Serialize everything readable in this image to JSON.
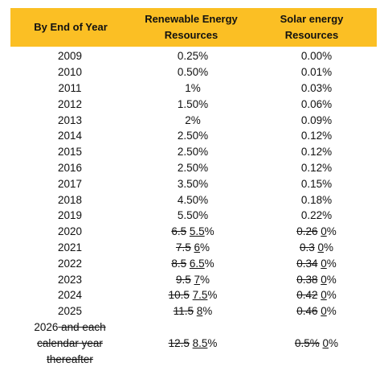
{
  "headers": {
    "col1": "By End of Year",
    "col2_line1": "Renewable Energy",
    "col2_line2": "Resources",
    "col3_line1": "Solar energy",
    "col3_line2": "Resources"
  },
  "rows": [
    {
      "year": "2009",
      "ren": {
        "plain": "0.25%"
      },
      "sol": {
        "plain": "0.00%"
      }
    },
    {
      "year": "2010",
      "ren": {
        "plain": "0.50%"
      },
      "sol": {
        "plain": "0.01%"
      }
    },
    {
      "year": "2011",
      "ren": {
        "plain": "1%"
      },
      "sol": {
        "plain": "0.03%"
      }
    },
    {
      "year": "2012",
      "ren": {
        "plain": "1.50%"
      },
      "sol": {
        "plain": "0.06%"
      }
    },
    {
      "year": "2013",
      "ren": {
        "plain": "2%"
      },
      "sol": {
        "plain": "0.09%"
      }
    },
    {
      "year": "2014",
      "ren": {
        "plain": "2.50%"
      },
      "sol": {
        "plain": "0.12%"
      }
    },
    {
      "year": "2015",
      "ren": {
        "plain": "2.50%"
      },
      "sol": {
        "plain": "0.12%"
      }
    },
    {
      "year": "2016",
      "ren": {
        "plain": "2.50%"
      },
      "sol": {
        "plain": "0.12%"
      }
    },
    {
      "year": "2017",
      "ren": {
        "plain": "3.50%"
      },
      "sol": {
        "plain": "0.15%"
      }
    },
    {
      "year": "2018",
      "ren": {
        "plain": "4.50%"
      },
      "sol": {
        "plain": "0.18%"
      }
    },
    {
      "year": "2019",
      "ren": {
        "plain": "5.50%"
      },
      "sol": {
        "plain": "0.22%"
      }
    },
    {
      "year": "2020",
      "ren": {
        "old": "6.5",
        "new": "5.5",
        "suffix": "%"
      },
      "sol": {
        "old": "0.26",
        "new": "0",
        "suffix": "%"
      }
    },
    {
      "year": "2021",
      "ren": {
        "old": "7.5",
        "new": "6",
        "suffix": "%"
      },
      "sol": {
        "old": "0.3",
        "new": "0",
        "suffix": "%"
      }
    },
    {
      "year": "2022",
      "ren": {
        "old": "8.5",
        "new": "6.5",
        "suffix": "%"
      },
      "sol": {
        "old": "0.34",
        "new": "0",
        "suffix": "%"
      }
    },
    {
      "year": "2023",
      "ren": {
        "old": "9.5",
        "new": "7",
        "suffix": "%"
      },
      "sol": {
        "old": "0.38",
        "new": "0",
        "suffix": "%"
      }
    },
    {
      "year": "2024",
      "ren": {
        "old": "10.5",
        "new": "7.5",
        "suffix": "%"
      },
      "sol": {
        "old": "0.42",
        "new": "0",
        "suffix": "%"
      }
    },
    {
      "year": "2025",
      "ren": {
        "old": "11.5",
        "new": "8",
        "suffix": "%"
      },
      "sol": {
        "old": "0.46",
        "new": "0",
        "suffix": "%"
      }
    }
  ],
  "last_row": {
    "year_plain": "2026",
    "year_struck_line1": " and each",
    "year_struck_line2": "calendar year",
    "year_struck_line3": "thereafter",
    "ren": {
      "old": "12.5",
      "new": "8.5",
      "suffix": "%"
    },
    "sol": {
      "old": "0.5%",
      "new": "0",
      "suffix": "%"
    }
  }
}
